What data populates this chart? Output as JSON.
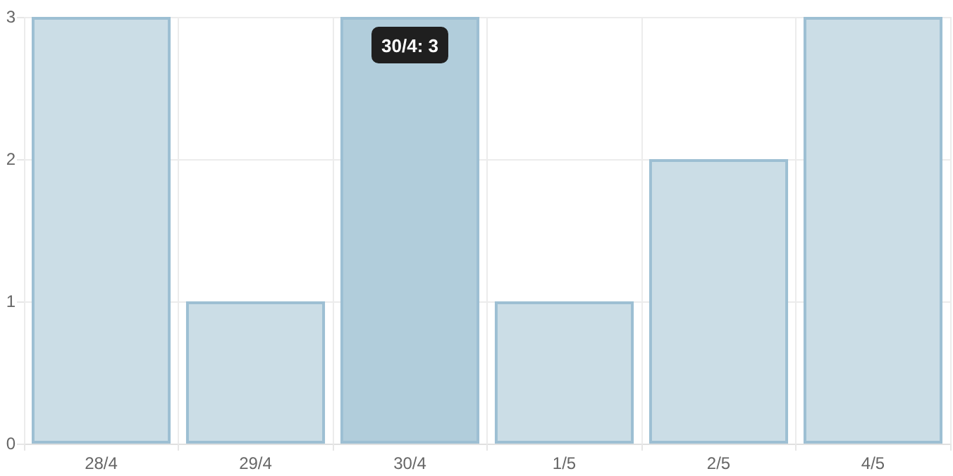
{
  "chart_data": {
    "type": "bar",
    "categories": [
      "28/4",
      "29/4",
      "30/4",
      "1/5",
      "2/5",
      "4/5"
    ],
    "values": [
      3,
      1,
      3,
      1,
      2,
      3
    ],
    "colors": [
      "#cbdde6",
      "#cbdde6",
      "#b1cddb",
      "#cbdde6",
      "#cbdde6",
      "#cbdde6"
    ],
    "ylim": [
      0,
      3
    ],
    "yticks": [
      0,
      1,
      2,
      3
    ],
    "grid": true,
    "annotations": [
      {
        "text": "30/4: 3",
        "x": "30/4",
        "y": 3
      }
    ]
  }
}
